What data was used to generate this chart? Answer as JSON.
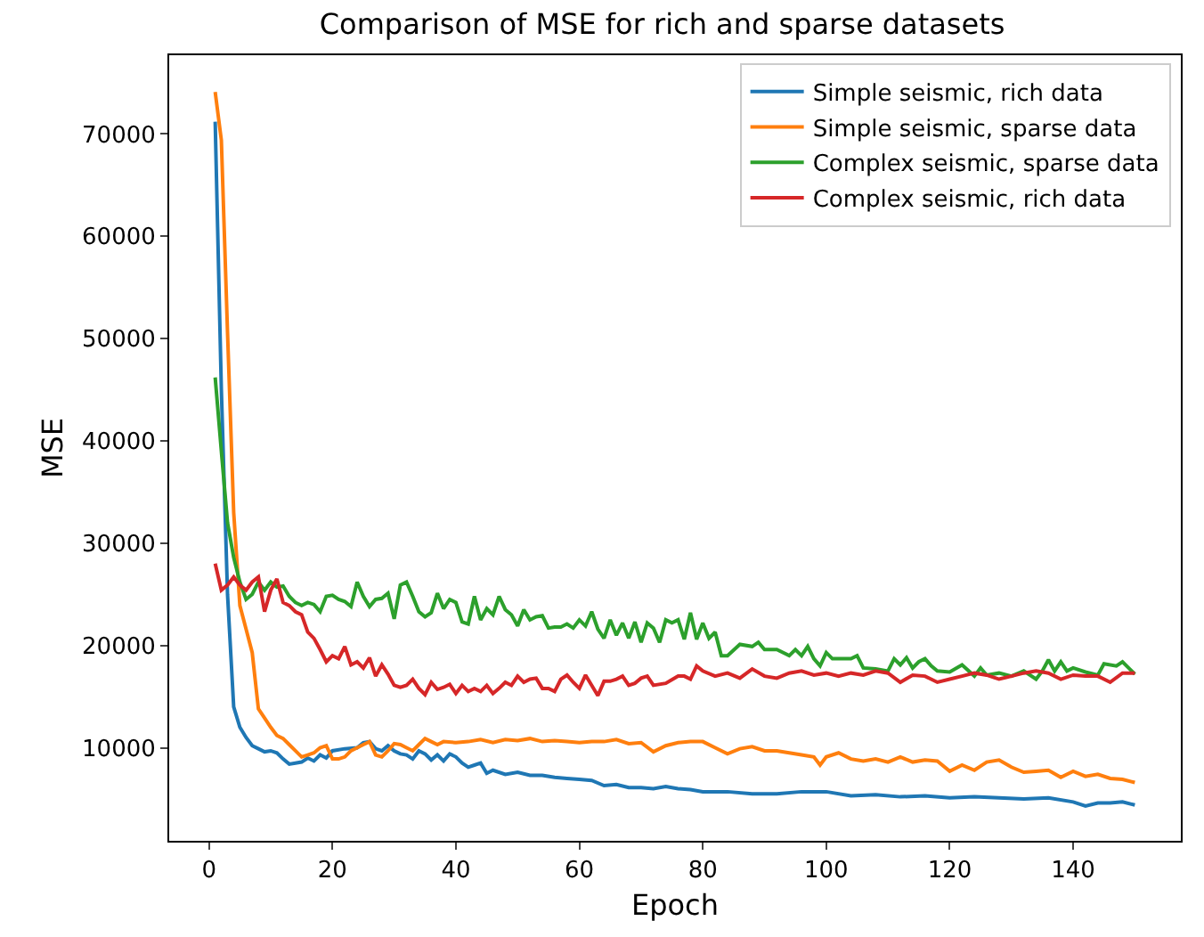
{
  "chart_data": {
    "type": "line",
    "title": "Comparison of MSE for rich and sparse datasets",
    "xlabel": "Epoch",
    "ylabel": "MSE",
    "xlim": [
      -6.45,
      157.45
    ],
    "xticks": [
      0,
      20,
      40,
      60,
      80,
      100,
      120,
      140
    ],
    "ylim": [
      900,
      77700
    ],
    "yticks": [
      10000,
      20000,
      30000,
      40000,
      50000,
      60000,
      70000
    ],
    "grid": false,
    "legend": "top right",
    "marker": "none",
    "line_style": "solid",
    "series": [
      {
        "name": "Simple seismic, rich data",
        "color": "#1f77b4",
        "x": [
          1,
          2,
          3,
          4,
          5,
          6,
          7,
          8,
          9,
          10,
          11,
          12,
          13,
          14,
          15,
          16,
          17,
          18,
          19,
          20,
          22,
          24,
          25,
          26,
          27,
          28,
          29,
          30,
          31,
          32,
          33,
          34,
          35,
          36,
          37,
          38,
          39,
          40,
          41,
          42,
          43,
          44,
          45,
          46,
          48,
          50,
          52,
          54,
          56,
          58,
          60,
          62,
          64,
          66,
          68,
          70,
          72,
          74,
          76,
          78,
          80,
          84,
          88,
          92,
          96,
          100,
          104,
          108,
          112,
          116,
          120,
          124,
          128,
          132,
          136,
          140,
          142,
          144,
          146,
          148,
          150
        ],
        "values": [
          71200,
          45000,
          25000,
          14000,
          12000,
          11000,
          10200,
          9900,
          9600,
          9700,
          9500,
          8900,
          8400,
          8500,
          8600,
          9000,
          8700,
          9300,
          9000,
          9700,
          9900,
          10000,
          10500,
          10600,
          9900,
          9700,
          10200,
          9700,
          9400,
          9300,
          8900,
          9700,
          9400,
          8800,
          9300,
          8700,
          9400,
          9100,
          8500,
          8100,
          8300,
          8500,
          7500,
          7800,
          7400,
          7600,
          7300,
          7300,
          7100,
          7000,
          6900,
          6800,
          6300,
          6400,
          6100,
          6100,
          6000,
          6200,
          6000,
          5900,
          5700,
          5700,
          5500,
          5500,
          5700,
          5700,
          5300,
          5400,
          5200,
          5300,
          5100,
          5200,
          5100,
          5000,
          5100,
          4700,
          4300,
          4600,
          4600,
          4700,
          4400
        ]
      },
      {
        "name": "Simple seismic, sparse data",
        "color": "#ff7f0e",
        "x": [
          1,
          2,
          3,
          4,
          5,
          6,
          7,
          8,
          9,
          10,
          11,
          12,
          13,
          14,
          15,
          16,
          17,
          18,
          19,
          20,
          21,
          22,
          23,
          24,
          25,
          26,
          27,
          28,
          29,
          30,
          31,
          32,
          33,
          34,
          35,
          36,
          37,
          38,
          40,
          42,
          44,
          46,
          48,
          50,
          52,
          54,
          56,
          58,
          60,
          62,
          64,
          66,
          68,
          70,
          72,
          74,
          76,
          78,
          80,
          82,
          84,
          86,
          88,
          90,
          92,
          94,
          96,
          98,
          99,
          100,
          102,
          104,
          106,
          108,
          110,
          112,
          114,
          116,
          118,
          120,
          122,
          124,
          126,
          128,
          130,
          132,
          134,
          136,
          138,
          140,
          142,
          144,
          146,
          148,
          150
        ],
        "values": [
          74100,
          69400,
          50600,
          33000,
          23900,
          21600,
          19300,
          13800,
          12900,
          12000,
          11200,
          10900,
          10300,
          9700,
          9100,
          9300,
          9500,
          10000,
          10200,
          8900,
          8900,
          9100,
          9700,
          10000,
          10300,
          10600,
          9300,
          9100,
          9700,
          10400,
          10300,
          10000,
          9700,
          10300,
          10900,
          10600,
          10300,
          10600,
          10500,
          10600,
          10800,
          10500,
          10800,
          10700,
          10900,
          10600,
          10700,
          10600,
          10500,
          10600,
          10600,
          10800,
          10400,
          10500,
          9600,
          10200,
          10500,
          10600,
          10600,
          10000,
          9400,
          9900,
          10100,
          9700,
          9700,
          9500,
          9300,
          9100,
          8300,
          9100,
          9500,
          8900,
          8700,
          8900,
          8600,
          9100,
          8600,
          8800,
          8700,
          7700,
          8300,
          7800,
          8600,
          8800,
          8100,
          7600,
          7700,
          7800,
          7100,
          7700,
          7200,
          7400,
          7000,
          6900,
          6600
        ]
      },
      {
        "name": "Complex seismic, sparse data",
        "color": "#2ca02c",
        "x": [
          1,
          2,
          3,
          4,
          5,
          6,
          7,
          8,
          9,
          10,
          11,
          12,
          13,
          14,
          15,
          16,
          17,
          18,
          19,
          20,
          21,
          22,
          23,
          24,
          25,
          26,
          27,
          28,
          29,
          30,
          31,
          32,
          33,
          34,
          35,
          36,
          37,
          38,
          39,
          40,
          41,
          42,
          43,
          44,
          45,
          46,
          47,
          48,
          49,
          50,
          51,
          52,
          53,
          54,
          55,
          56,
          57,
          58,
          59,
          60,
          61,
          62,
          63,
          64,
          65,
          66,
          67,
          68,
          69,
          70,
          71,
          72,
          73,
          74,
          75,
          76,
          77,
          78,
          79,
          80,
          81,
          82,
          83,
          84,
          86,
          88,
          89,
          90,
          92,
          94,
          95,
          96,
          97,
          98,
          99,
          100,
          101,
          104,
          105,
          106,
          108,
          110,
          111,
          112,
          113,
          114,
          115,
          116,
          117,
          118,
          120,
          122,
          124,
          125,
          126,
          128,
          130,
          132,
          134,
          135,
          136,
          137,
          138,
          139,
          140,
          142,
          144,
          145,
          147,
          148,
          150
        ],
        "values": [
          46200,
          39000,
          32000,
          28600,
          26200,
          24500,
          25000,
          26200,
          25400,
          26200,
          25700,
          25800,
          24800,
          24200,
          23900,
          24200,
          24000,
          23300,
          24800,
          24900,
          24500,
          24300,
          23800,
          26200,
          24800,
          23800,
          24500,
          24600,
          25100,
          22600,
          25900,
          26200,
          24800,
          23300,
          22800,
          23200,
          25100,
          23600,
          24500,
          24200,
          22300,
          22100,
          24800,
          22500,
          23600,
          23000,
          24800,
          23500,
          23000,
          21900,
          23500,
          22500,
          22800,
          22900,
          21700,
          21800,
          21800,
          22100,
          21700,
          22500,
          21900,
          23300,
          21600,
          20700,
          22500,
          21000,
          22200,
          20700,
          22300,
          20300,
          22200,
          21700,
          20300,
          22500,
          22200,
          22500,
          20600,
          23200,
          20600,
          22200,
          20700,
          21300,
          19000,
          19000,
          20100,
          19900,
          20300,
          19600,
          19600,
          19000,
          19600,
          19000,
          19900,
          18700,
          18000,
          19300,
          18700,
          18700,
          19000,
          17800,
          17700,
          17500,
          18700,
          18100,
          18800,
          17800,
          18400,
          18700,
          18000,
          17500,
          17400,
          18100,
          17000,
          17800,
          17100,
          17300,
          17000,
          17500,
          16700,
          17500,
          18600,
          17500,
          18400,
          17500,
          17800,
          17400,
          17100,
          18200,
          18000,
          18400,
          17200
        ]
      },
      {
        "name": "Complex seismic, rich data",
        "color": "#d62728",
        "x": [
          1,
          2,
          3,
          4,
          5,
          6,
          7,
          8,
          9,
          10,
          11,
          12,
          13,
          14,
          15,
          16,
          17,
          18,
          19,
          20,
          21,
          22,
          23,
          24,
          25,
          26,
          27,
          28,
          29,
          30,
          31,
          32,
          33,
          34,
          35,
          36,
          37,
          38,
          39,
          40,
          41,
          42,
          43,
          44,
          45,
          46,
          47,
          48,
          49,
          50,
          51,
          52,
          53,
          54,
          55,
          56,
          57,
          58,
          59,
          60,
          61,
          62,
          63,
          64,
          65,
          66,
          67,
          68,
          69,
          70,
          71,
          72,
          74,
          76,
          77,
          78,
          79,
          80,
          82,
          84,
          86,
          88,
          90,
          92,
          94,
          96,
          98,
          100,
          102,
          104,
          106,
          108,
          110,
          112,
          114,
          116,
          118,
          120,
          122,
          124,
          126,
          128,
          130,
          132,
          134,
          136,
          138,
          140,
          142,
          144,
          146,
          148,
          150
        ],
        "values": [
          28000,
          25400,
          25900,
          26700,
          25900,
          25400,
          26200,
          26700,
          23300,
          25400,
          26500,
          24200,
          23900,
          23300,
          23000,
          21300,
          20700,
          19600,
          18400,
          19000,
          18700,
          19900,
          18100,
          18400,
          17800,
          18800,
          17000,
          18100,
          17200,
          16100,
          15900,
          16100,
          16700,
          15800,
          15200,
          16400,
          15700,
          15900,
          16200,
          15300,
          16100,
          15500,
          15800,
          15500,
          16100,
          15300,
          15800,
          16400,
          16100,
          17000,
          16400,
          16700,
          16800,
          15800,
          15800,
          15500,
          16700,
          17100,
          16400,
          15800,
          17100,
          16100,
          15100,
          16500,
          16500,
          16700,
          17000,
          16100,
          16300,
          16800,
          17000,
          16100,
          16300,
          17000,
          17000,
          16700,
          18000,
          17500,
          17000,
          17300,
          16800,
          17700,
          17000,
          16800,
          17300,
          17500,
          17100,
          17300,
          17000,
          17300,
          17100,
          17500,
          17300,
          16400,
          17100,
          17000,
          16400,
          16700,
          17000,
          17300,
          17100,
          16700,
          17000,
          17300,
          17500,
          17300,
          16700,
          17100,
          17000,
          17000,
          16400,
          17300,
          17300
        ]
      }
    ]
  }
}
